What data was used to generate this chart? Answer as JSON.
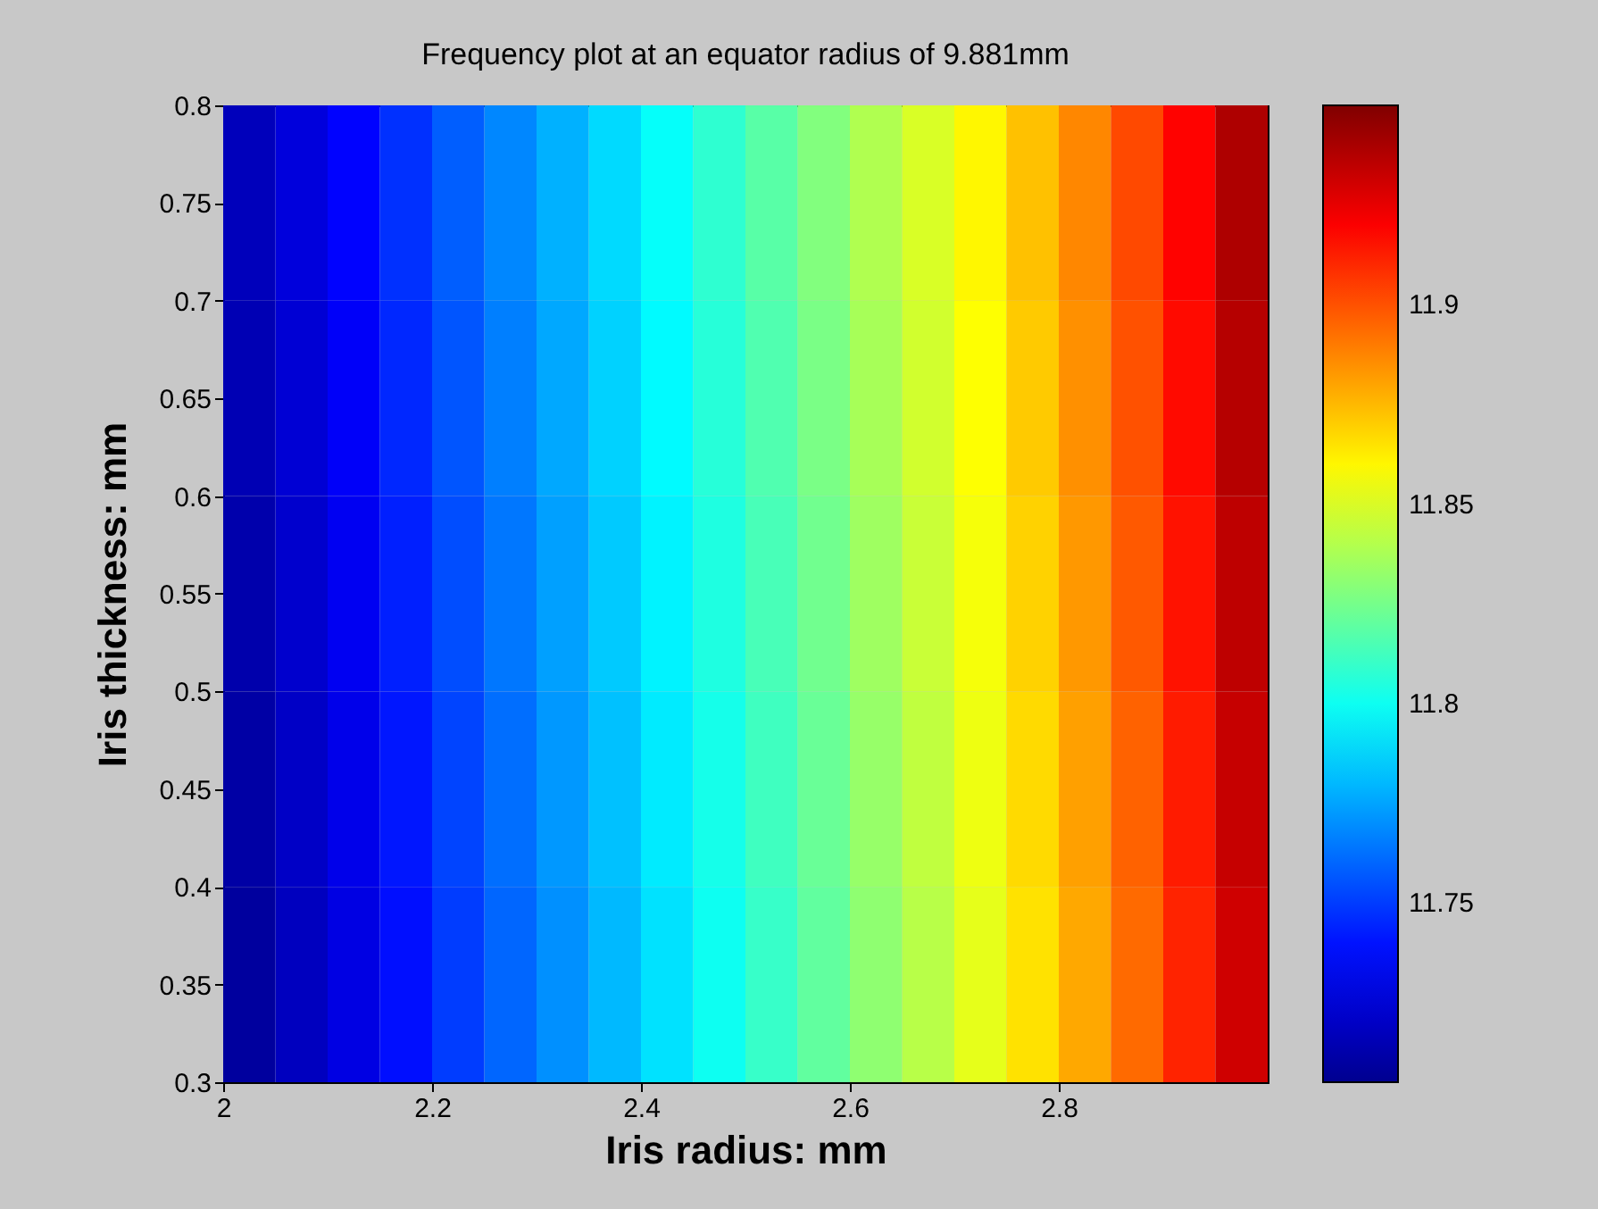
{
  "chart_data": {
    "type": "heatmap",
    "title": "Frequency plot at an equator radius of 9.881mm",
    "xlabel": "Iris radius: mm",
    "ylabel": "Iris thickness: mm",
    "x": [
      2.025,
      2.075,
      2.125,
      2.175,
      2.225,
      2.275,
      2.325,
      2.375,
      2.425,
      2.475,
      2.525,
      2.575,
      2.625,
      2.675,
      2.725,
      2.775,
      2.825,
      2.875,
      2.925,
      2.975
    ],
    "cells": [
      [
        11.717,
        11.726,
        11.736,
        11.747,
        11.758,
        11.768,
        11.778,
        11.788,
        11.798,
        11.808,
        11.818,
        11.828,
        11.839,
        11.849,
        11.86,
        11.873,
        11.887,
        11.902,
        11.919,
        11.939
      ],
      [
        11.715,
        11.724,
        11.734,
        11.745,
        11.756,
        11.766,
        11.776,
        11.786,
        11.796,
        11.806,
        11.816,
        11.826,
        11.837,
        11.847,
        11.858,
        11.871,
        11.885,
        11.9,
        11.917,
        11.937
      ],
      [
        11.713,
        11.722,
        11.732,
        11.743,
        11.754,
        11.764,
        11.774,
        11.784,
        11.794,
        11.804,
        11.814,
        11.824,
        11.835,
        11.845,
        11.856,
        11.869,
        11.883,
        11.898,
        11.915,
        11.935
      ],
      [
        11.711,
        11.72,
        11.73,
        11.741,
        11.752,
        11.762,
        11.772,
        11.782,
        11.792,
        11.802,
        11.812,
        11.822,
        11.833,
        11.843,
        11.854,
        11.867,
        11.881,
        11.896,
        11.913,
        11.933
      ],
      [
        11.709,
        11.718,
        11.728,
        11.739,
        11.75,
        11.76,
        11.77,
        11.78,
        11.79,
        11.8,
        11.81,
        11.82,
        11.831,
        11.841,
        11.852,
        11.865,
        11.879,
        11.894,
        11.911,
        11.931
      ]
    ],
    "xlim": [
      2,
      3
    ],
    "xticks": [
      2,
      2.2,
      2.4,
      2.6,
      2.8
    ],
    "ylim": [
      0.3,
      0.8
    ],
    "yticks": [
      0.3,
      0.35,
      0.4,
      0.45,
      0.5,
      0.55,
      0.6,
      0.65,
      0.7,
      0.75,
      0.8
    ],
    "clim": [
      11.705,
      11.95
    ],
    "cticks": [
      11.75,
      11.8,
      11.85,
      11.9
    ]
  }
}
